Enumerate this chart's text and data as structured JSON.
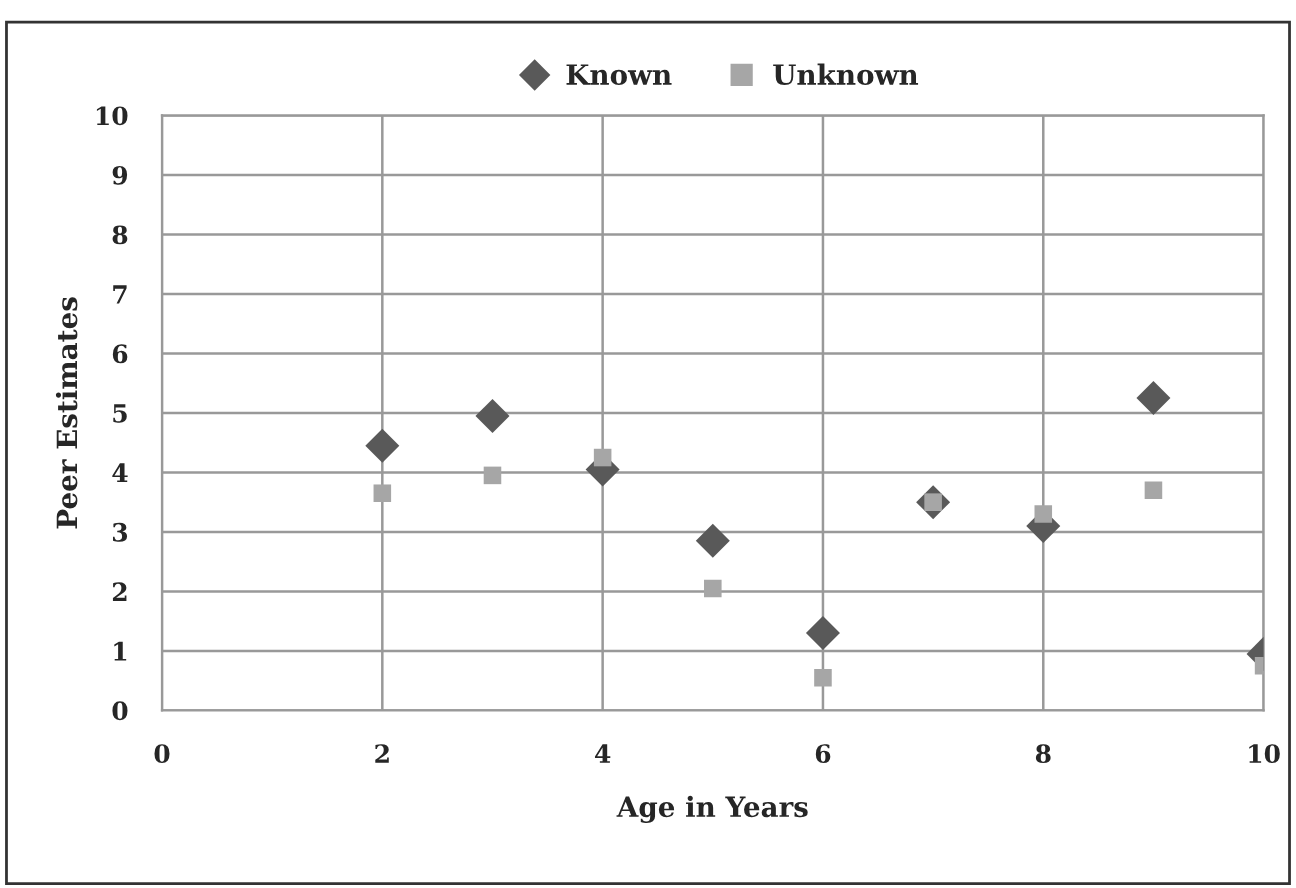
{
  "chart_data": {
    "type": "scatter",
    "xlabel": "Age in Years",
    "ylabel": "Peer Estimates",
    "xlim": [
      0,
      10
    ],
    "xticks": [
      0,
      2,
      4,
      6,
      8,
      10
    ],
    "ylim": [
      0,
      10
    ],
    "yticks": [
      0,
      1,
      2,
      3,
      4,
      5,
      6,
      7,
      8,
      9,
      10
    ],
    "grid": true,
    "legend": "top",
    "series": [
      {
        "name": "Known",
        "color": "#595959",
        "marker": "diamond",
        "x": [
          2,
          3,
          4,
          5,
          6,
          7,
          8,
          9,
          10
        ],
        "values": [
          4.45,
          4.95,
          4.05,
          2.85,
          1.3,
          3.5,
          3.1,
          5.25,
          0.95
        ]
      },
      {
        "name": "Unknown",
        "color": "#a6a6a6",
        "marker": "square",
        "x": [
          2,
          3,
          4,
          5,
          6,
          7,
          8,
          9,
          10
        ],
        "values": [
          3.65,
          3.95,
          4.25,
          2.05,
          0.55,
          3.5,
          3.3,
          3.7,
          0.75
        ]
      }
    ]
  }
}
